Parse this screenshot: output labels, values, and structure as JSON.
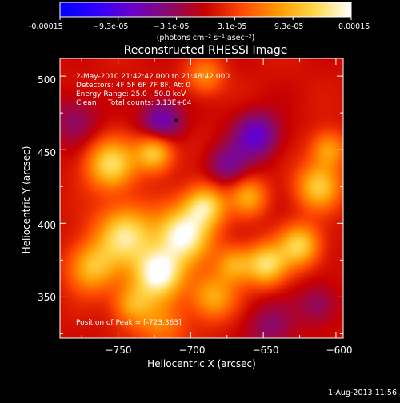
{
  "colorbar": {
    "tick_labels": [
      "-0.00015",
      "−9.3e-05",
      "−3.1e-05",
      "3.1e-05",
      "9.3e-05",
      "0.00015"
    ],
    "units_label": "(photons cm⁻² s⁻¹ asec⁻²)",
    "range": [
      -0.00015,
      0.00015
    ],
    "stops": [
      "#0000ff",
      "#3000ff",
      "#6a00c8",
      "#8a0a6a",
      "#c80000",
      "#ff4a00",
      "#ff9a00",
      "#ffd84a",
      "#ffffff"
    ]
  },
  "chart_data": {
    "type": "heatmap",
    "title": "Reconstructed RHESSI Image",
    "xlabel": "Heliocentric X (arcsec)",
    "ylabel": "Heliocentric Y (arcsec)",
    "xlim": [
      -790,
      -595
    ],
    "ylim": [
      322,
      512
    ],
    "x_ticks": [
      -750,
      -700,
      -650,
      -600
    ],
    "x_tick_labels": [
      "−750",
      "−700",
      "−650",
      "−600"
    ],
    "y_ticks": [
      350,
      400,
      450,
      500
    ],
    "y_tick_labels": [
      "350",
      "400",
      "450",
      "500"
    ],
    "peak_marker": [
      -710,
      470
    ],
    "annotations": [
      "2-May-2010 21:42:42.000 to 21:48:42.000",
      "Detectors: 4F 5F 6F 7F 8F, Att 0",
      "Energy Range: 25.0 - 50.0 keV",
      "Clean     Total counts: 3.13E+04"
    ],
    "peak_label": "Position of Peak = [-723,363]",
    "sources": [
      {
        "x": -722,
        "y": 366,
        "amp": 1.0,
        "sigma": 12
      },
      {
        "x": -705,
        "y": 392,
        "amp": 0.95,
        "sigma": 13
      },
      {
        "x": -690,
        "y": 412,
        "amp": 0.75,
        "sigma": 10
      },
      {
        "x": -745,
        "y": 392,
        "amp": 0.8,
        "sigma": 14
      },
      {
        "x": -768,
        "y": 370,
        "amp": 0.6,
        "sigma": 12
      },
      {
        "x": -755,
        "y": 440,
        "amp": 0.75,
        "sigma": 12
      },
      {
        "x": -725,
        "y": 448,
        "amp": 0.7,
        "sigma": 9
      },
      {
        "x": -740,
        "y": 345,
        "amp": 0.5,
        "sigma": 10
      },
      {
        "x": -685,
        "y": 350,
        "amp": 0.55,
        "sigma": 11
      },
      {
        "x": -670,
        "y": 372,
        "amp": 0.5,
        "sigma": 9
      },
      {
        "x": -648,
        "y": 372,
        "amp": 0.75,
        "sigma": 10
      },
      {
        "x": -625,
        "y": 385,
        "amp": 0.7,
        "sigma": 10
      },
      {
        "x": -612,
        "y": 425,
        "amp": 0.65,
        "sigma": 11
      },
      {
        "x": -605,
        "y": 450,
        "amp": 0.5,
        "sigma": 9
      },
      {
        "x": -660,
        "y": 418,
        "amp": 0.5,
        "sigma": 9
      },
      {
        "x": -690,
        "y": 500,
        "amp": 0.4,
        "sigma": 9
      },
      {
        "x": -720,
        "y": 330,
        "amp": 0.35,
        "sigma": 12
      },
      {
        "x": -720,
        "y": 470,
        "amp": -0.55,
        "sigma": 10
      },
      {
        "x": -655,
        "y": 460,
        "amp": -0.6,
        "sigma": 11
      },
      {
        "x": -675,
        "y": 440,
        "amp": -0.4,
        "sigma": 10
      },
      {
        "x": -645,
        "y": 330,
        "amp": -0.3,
        "sigma": 12
      },
      {
        "x": -780,
        "y": 470,
        "amp": -0.3,
        "sigma": 12
      },
      {
        "x": -612,
        "y": 345,
        "amp": -0.3,
        "sigma": 10
      }
    ]
  },
  "footer": {
    "timestamp": "1-Aug-2013 11:56"
  }
}
